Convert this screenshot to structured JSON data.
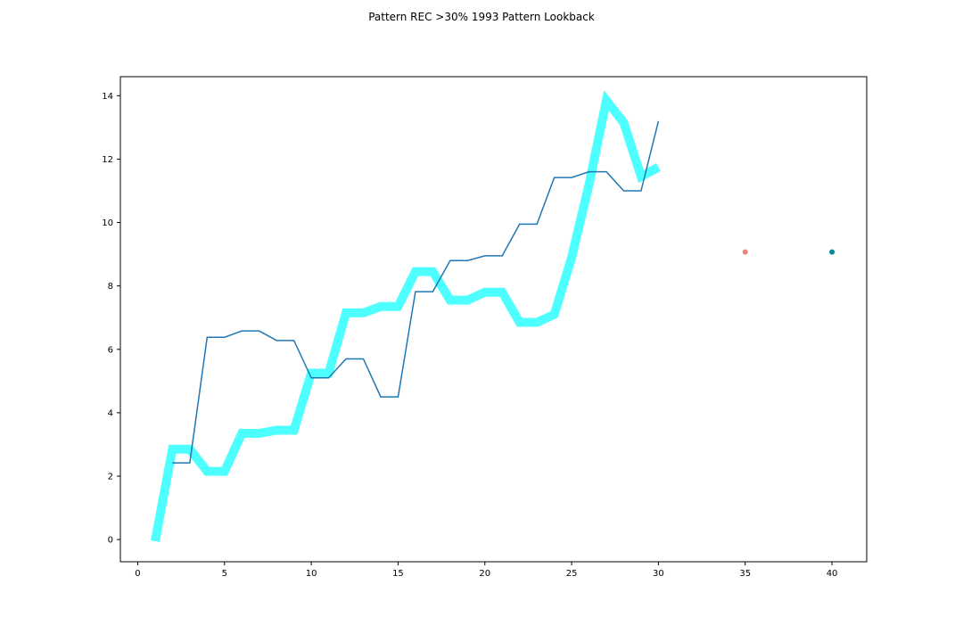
{
  "chart_data": {
    "type": "line",
    "title": "Pattern REC >30% 1993 Pattern Lookback",
    "xlabel": "",
    "ylabel": "",
    "xlim": [
      -1,
      42
    ],
    "ylim": [
      -0.7,
      14.6
    ],
    "x_ticks": [
      0,
      5,
      10,
      15,
      20,
      25,
      30,
      35,
      40
    ],
    "y_ticks": [
      0,
      2,
      4,
      6,
      8,
      10,
      12,
      14
    ],
    "grid": false,
    "series": [
      {
        "style": "thick",
        "color": "#4dffff",
        "x": [
          1,
          2,
          3,
          4,
          5,
          6,
          7,
          8,
          9,
          10,
          11,
          12,
          13,
          14,
          15,
          16,
          17,
          18,
          19,
          20,
          21,
          22,
          23,
          24,
          25,
          26,
          27,
          28,
          29,
          30
        ],
        "values": [
          -0.05,
          2.85,
          2.85,
          2.15,
          2.15,
          3.35,
          3.35,
          3.45,
          3.45,
          5.25,
          5.25,
          7.15,
          7.15,
          7.35,
          7.35,
          8.45,
          8.45,
          7.55,
          7.55,
          7.8,
          7.8,
          6.85,
          6.85,
          7.1,
          8.9,
          11.2,
          13.85,
          13.15,
          11.45,
          11.75
        ]
      },
      {
        "style": "thin",
        "color": "#1f77b4",
        "x": [
          2,
          3,
          4,
          5,
          6,
          7,
          8,
          9,
          10,
          11,
          12,
          13,
          14,
          15,
          16,
          17,
          18,
          19,
          20,
          21,
          22,
          23,
          24,
          25,
          26,
          27,
          28,
          29,
          30
        ],
        "values": [
          2.42,
          2.42,
          6.38,
          6.38,
          6.58,
          6.58,
          6.28,
          6.28,
          5.1,
          5.1,
          5.7,
          5.7,
          4.5,
          4.5,
          7.82,
          7.82,
          8.8,
          8.8,
          8.95,
          8.95,
          9.95,
          9.95,
          11.42,
          11.42,
          11.6,
          11.6,
          11.0,
          11.0,
          13.2
        ]
      }
    ],
    "points": [
      {
        "x": 35,
        "y": 9.07,
        "color": "#f08080"
      },
      {
        "x": 40,
        "y": 9.07,
        "color": "#008b9b"
      }
    ]
  }
}
